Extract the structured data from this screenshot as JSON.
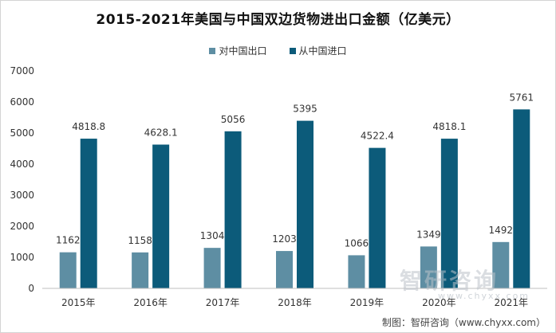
{
  "chart_data": {
    "type": "bar",
    "title": "2015-2021年美国与中国双边货物进出口金额（亿美元）",
    "categories": [
      "2015年",
      "2016年",
      "2017年",
      "2018年",
      "2019年",
      "2020年",
      "2021年"
    ],
    "series": [
      {
        "name": "对中国出口",
        "values": [
          1162,
          1158,
          1304,
          1203,
          1066,
          1349,
          1492
        ],
        "labels": [
          "1162",
          "1158",
          "1304",
          "1203",
          "1066",
          "1349",
          "1492"
        ],
        "color": "#5e8ea3"
      },
      {
        "name": "从中国进口",
        "values": [
          4818.8,
          4628.1,
          5056,
          5395,
          4522.4,
          4818.1,
          5761
        ],
        "labels": [
          "4818.8",
          "4628.1",
          "5056",
          "5395",
          "4522.4",
          "4818.1",
          "5761"
        ],
        "color": "#0c5b7a"
      }
    ],
    "ylim": [
      0,
      7000
    ],
    "yticks": [
      0,
      1000,
      2000,
      3000,
      4000,
      5000,
      6000,
      7000
    ],
    "grid": false,
    "legend_position": "top"
  },
  "watermark": {
    "brand": "智研咨询",
    "url": "www.chyxx.com"
  },
  "source": "制图：智研咨询（www.chyxx.com）"
}
